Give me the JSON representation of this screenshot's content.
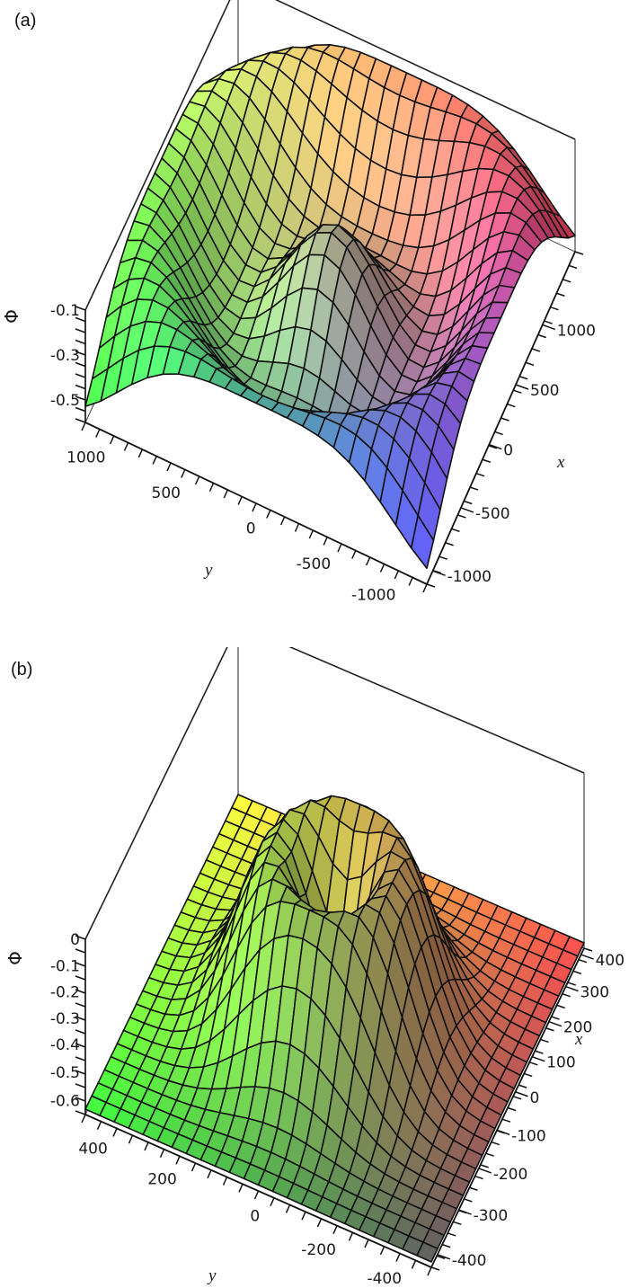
{
  "panels": [
    {
      "label": "(a)",
      "zaxis": {
        "name": "Φ",
        "ticks": [
          "-0.1",
          "-0.3",
          "-0.5"
        ]
      },
      "yaxis": {
        "name": "y",
        "ticks": [
          "1000",
          "500",
          "0",
          "-500",
          "-1000"
        ]
      },
      "xaxis": {
        "name": "x",
        "ticks": [
          "1000",
          "500",
          "0",
          "-500",
          "-1000"
        ]
      }
    },
    {
      "label": "(b)",
      "zaxis": {
        "name": "Φ",
        "ticks": [
          "0",
          "-0.1",
          "-0.2",
          "-0.3",
          "-0.4",
          "-0.5",
          "-0.6"
        ]
      },
      "yaxis": {
        "name": "y",
        "ticks": [
          "400",
          "200",
          "0",
          "-200",
          "-400"
        ]
      },
      "xaxis": {
        "name": "x",
        "ticks": [
          "400",
          "300",
          "200",
          "100",
          "0",
          "-100",
          "-200",
          "-300",
          "-400"
        ]
      }
    }
  ],
  "chart_data": [
    {
      "type": "surface3d",
      "title": "(a)",
      "xlabel": "x",
      "ylabel": "y",
      "zlabel": "Φ",
      "xlim": [
        -1200,
        1200
      ],
      "ylim": [
        -1200,
        1200
      ],
      "zlim": [
        -0.6,
        -0.1
      ],
      "x_ticks": [
        -1000,
        -500,
        0,
        500,
        1000
      ],
      "y_ticks": [
        -1000,
        -500,
        0,
        500,
        1000
      ],
      "z_ticks": [
        -0.5,
        -0.3,
        -0.1
      ],
      "description": "Radially oscillating (ring/ripple) surface with concentric ridges and troughs, central peak near Φ≈-0.2, rings of peaks reaching about -0.1 and troughs near -0.55; colored by a rainbow (x,y) colormap with black mesh lines",
      "grid": false,
      "colors": {
        "corner_yx_high": "#ffff80",
        "corner_x_high": "#ff4060",
        "corner_y_high": "#40ff40",
        "corner_low": "#6060ff"
      }
    },
    {
      "type": "surface3d",
      "title": "(b)",
      "xlabel": "x",
      "ylabel": "y",
      "zlabel": "Φ",
      "xlim": [
        -400,
        400
      ],
      "ylim": [
        -400,
        400
      ],
      "zlim": [
        -0.65,
        0
      ],
      "x_ticks": [
        -400,
        -300,
        -200,
        -100,
        0,
        100,
        200,
        300,
        400
      ],
      "y_ticks": [
        -400,
        -200,
        0,
        200,
        400
      ],
      "z_ticks": [
        -0.6,
        -0.5,
        -0.4,
        -0.3,
        -0.2,
        -0.1,
        0
      ],
      "description": "Flat plane at Φ≈-0.65 with a central raised crater-like bump: ring of maximum near Φ≈0 at radius ~150, slight dip at the center; colored by rainbow (x,y) colormap with black mesh lines",
      "grid": false,
      "colors": {
        "corner_yx_high": "#ffff40",
        "corner_x_high": "#ff5050",
        "corner_y_high": "#40ff40",
        "corner_low": "#606060"
      }
    }
  ]
}
